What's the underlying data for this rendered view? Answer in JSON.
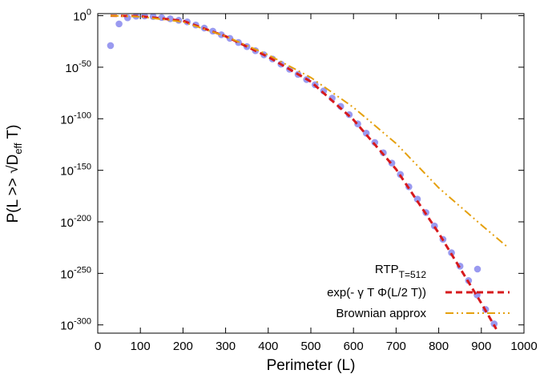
{
  "chart_data": {
    "type": "line",
    "y_scale": "log",
    "xlabel": "Perimeter (L)",
    "ylabel": {
      "text": "P(L >> √D",
      "sub": "eff",
      "after": " T)"
    },
    "xlim": [
      0,
      1000
    ],
    "xticks": [
      0,
      100,
      200,
      300,
      400,
      500,
      600,
      700,
      800,
      900,
      1000
    ],
    "ylim": [
      1e-308,
      100
    ],
    "yticks": [
      {
        "value": 1,
        "label": "10",
        "exponent": "0"
      },
      {
        "value": 1e-50,
        "label": "10",
        "exponent": "-50"
      },
      {
        "value": 1e-100,
        "label": "10",
        "exponent": "-100"
      },
      {
        "value": 1e-150,
        "label": "10",
        "exponent": "-150"
      },
      {
        "value": 1e-200,
        "label": "10",
        "exponent": "-200"
      },
      {
        "value": 1e-250,
        "label": "10",
        "exponent": "-250"
      },
      {
        "value": 1e-300,
        "label": "10",
        "exponent": "-300"
      }
    ],
    "legend": "bottom-right",
    "series": [
      {
        "name": "RTP",
        "name_subscript": "T=512",
        "style": "points",
        "color": "#9a9af0",
        "x": [
          30,
          50,
          70,
          90,
          110,
          130,
          150,
          170,
          190,
          210,
          230,
          250,
          270,
          290,
          310,
          330,
          350,
          370,
          390,
          410,
          430,
          450,
          470,
          490,
          510,
          530,
          550,
          570,
          590,
          610,
          630,
          650,
          670,
          690,
          710,
          730,
          750,
          770,
          790,
          810,
          830,
          850,
          870,
          890,
          910,
          930
        ],
        "values": [
          1e-29,
          1e-08,
          0.01,
          0.32,
          0.5,
          0.16,
          0.016,
          0.001,
          3.2e-05,
          1e-06,
          1e-09,
          1e-12,
          1e-15,
          3.2e-19,
          1e-22,
          1e-26,
          1e-30,
          1e-34,
          1e-38,
          1e-42,
          1e-47,
          1e-52,
          1e-57,
          1e-62,
          1e-67,
          1e-73,
          1e-80,
          1e-88,
          1e-96,
          1e-105,
          1e-114,
          1e-123,
          1e-133,
          1e-143,
          1e-154,
          1e-166,
          1e-178,
          1e-191,
          1e-204,
          1e-217,
          1e-230,
          1e-243,
          1e-257,
          1e-271,
          1e-285,
          1e-299
        ]
      },
      {
        "name": "exp(- γ T Φ(L/2 T))",
        "style": "dashed",
        "color": "#d7191c",
        "x": [
          30,
          100,
          200,
          300,
          400,
          500,
          600,
          700,
          800,
          900,
          935
        ],
        "values": [
          1,
          0.32,
          1e-05,
          1e-20,
          1e-40,
          1e-64,
          1e-101,
          1e-149,
          1e-211,
          1e-279,
          1e-304
        ]
      },
      {
        "name": "Brownian approx",
        "style": "dashdotdot",
        "color": "#e5a00d",
        "x": [
          30,
          100,
          200,
          300,
          400,
          500,
          600,
          700,
          800,
          900,
          960
        ],
        "values": [
          1,
          0.1,
          1e-06,
          1e-20,
          1e-38,
          1e-60,
          1e-89,
          1e-124,
          1e-167,
          1e-203,
          1e-224
        ]
      }
    ]
  }
}
